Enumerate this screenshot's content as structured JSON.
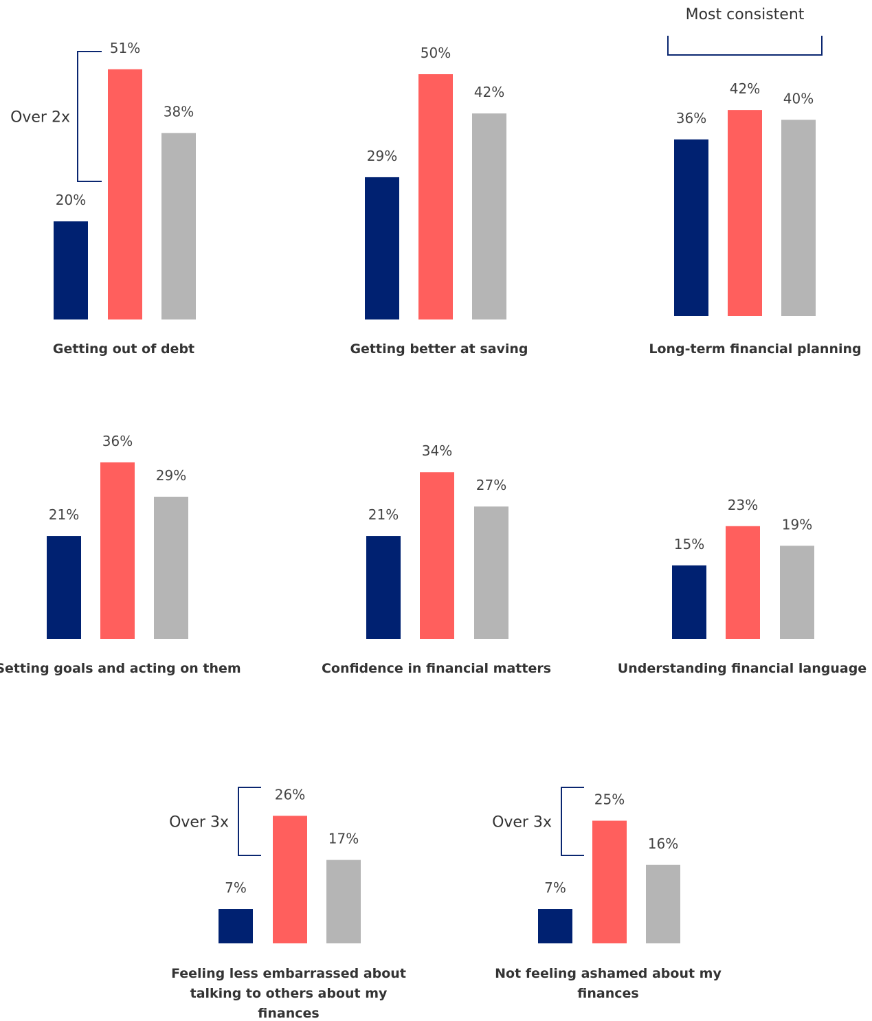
{
  "chart_data": [
    {
      "type": "bar",
      "title": "Getting out of debt",
      "values": [
        20,
        51,
        38
      ],
      "value_labels": [
        "20%",
        "51%",
        "38%"
      ],
      "colors": [
        "#002171",
        "#ff5f5d",
        "#b5b5b5"
      ],
      "annotation": "Over 2x"
    },
    {
      "type": "bar",
      "title": "Getting better at saving",
      "values": [
        29,
        50,
        42
      ],
      "value_labels": [
        "29%",
        "50%",
        "42%"
      ],
      "colors": [
        "#002171",
        "#ff5f5d",
        "#b5b5b5"
      ]
    },
    {
      "type": "bar",
      "title": "Long-term financial planning",
      "values": [
        36,
        42,
        40
      ],
      "value_labels": [
        "36%",
        "42%",
        "40%"
      ],
      "colors": [
        "#002171",
        "#ff5f5d",
        "#b5b5b5"
      ],
      "annotation": "Most consistent"
    },
    {
      "type": "bar",
      "title": "Setting goals and acting on them",
      "values": [
        21,
        36,
        29
      ],
      "value_labels": [
        "21%",
        "36%",
        "29%"
      ],
      "colors": [
        "#002171",
        "#ff5f5d",
        "#b5b5b5"
      ]
    },
    {
      "type": "bar",
      "title": "Confidence in financial matters",
      "values": [
        21,
        34,
        27
      ],
      "value_labels": [
        "21%",
        "34%",
        "27%"
      ],
      "colors": [
        "#002171",
        "#ff5f5d",
        "#b5b5b5"
      ]
    },
    {
      "type": "bar",
      "title": "Understanding financial language",
      "values": [
        15,
        23,
        19
      ],
      "value_labels": [
        "15%",
        "23%",
        "19%"
      ],
      "colors": [
        "#002171",
        "#ff5f5d",
        "#b5b5b5"
      ]
    },
    {
      "type": "bar",
      "title": "Feeling less embarrassed about talking to others about my finances",
      "values": [
        7,
        26,
        17
      ],
      "value_labels": [
        "7%",
        "26%",
        "17%"
      ],
      "colors": [
        "#002171",
        "#ff5f5d",
        "#b5b5b5"
      ],
      "annotation": "Over 3x"
    },
    {
      "type": "bar",
      "title": "Not feeling ashamed about my finances",
      "values": [
        7,
        25,
        16
      ],
      "value_labels": [
        "7%",
        "25%",
        "16%"
      ],
      "colors": [
        "#002171",
        "#ff5f5d",
        "#b5b5b5"
      ],
      "annotation": "Over 3x"
    }
  ]
}
